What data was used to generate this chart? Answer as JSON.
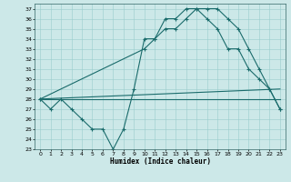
{
  "xlabel": "Humidex (Indice chaleur)",
  "bg_color": "#cce8e8",
  "grid_color": "#99cccc",
  "line_color": "#1a6b6b",
  "xlim": [
    -0.5,
    23.5
  ],
  "ylim": [
    23,
    37.5
  ],
  "xticks": [
    0,
    1,
    2,
    3,
    4,
    5,
    6,
    7,
    8,
    9,
    10,
    11,
    12,
    13,
    14,
    15,
    16,
    17,
    18,
    19,
    20,
    21,
    22,
    23
  ],
  "yticks": [
    23,
    24,
    25,
    26,
    27,
    28,
    29,
    30,
    31,
    32,
    33,
    34,
    35,
    36,
    37
  ],
  "series1": [
    [
      0,
      28
    ],
    [
      1,
      27
    ],
    [
      2,
      28
    ],
    [
      3,
      27
    ],
    [
      4,
      26
    ],
    [
      5,
      25
    ],
    [
      6,
      25
    ],
    [
      7,
      23
    ],
    [
      8,
      25
    ],
    [
      9,
      29
    ],
    [
      10,
      34
    ],
    [
      11,
      34
    ],
    [
      12,
      36
    ],
    [
      13,
      36
    ],
    [
      14,
      37
    ],
    [
      15,
      37
    ],
    [
      16,
      36
    ],
    [
      17,
      35
    ],
    [
      18,
      33
    ],
    [
      19,
      33
    ],
    [
      20,
      31
    ],
    [
      21,
      30
    ],
    [
      22,
      29
    ],
    [
      23,
      27
    ]
  ],
  "series2": [
    [
      0,
      28
    ],
    [
      10,
      33
    ],
    [
      11,
      34
    ],
    [
      12,
      35
    ],
    [
      13,
      35
    ],
    [
      14,
      36
    ],
    [
      15,
      37
    ],
    [
      16,
      37
    ],
    [
      17,
      37
    ],
    [
      18,
      36
    ],
    [
      19,
      35
    ],
    [
      20,
      33
    ],
    [
      21,
      31
    ],
    [
      22,
      29
    ],
    [
      23,
      27
    ]
  ],
  "series3": [
    [
      0,
      28
    ],
    [
      23,
      28
    ]
  ],
  "series4": [
    [
      0,
      28
    ],
    [
      23,
      29
    ]
  ]
}
